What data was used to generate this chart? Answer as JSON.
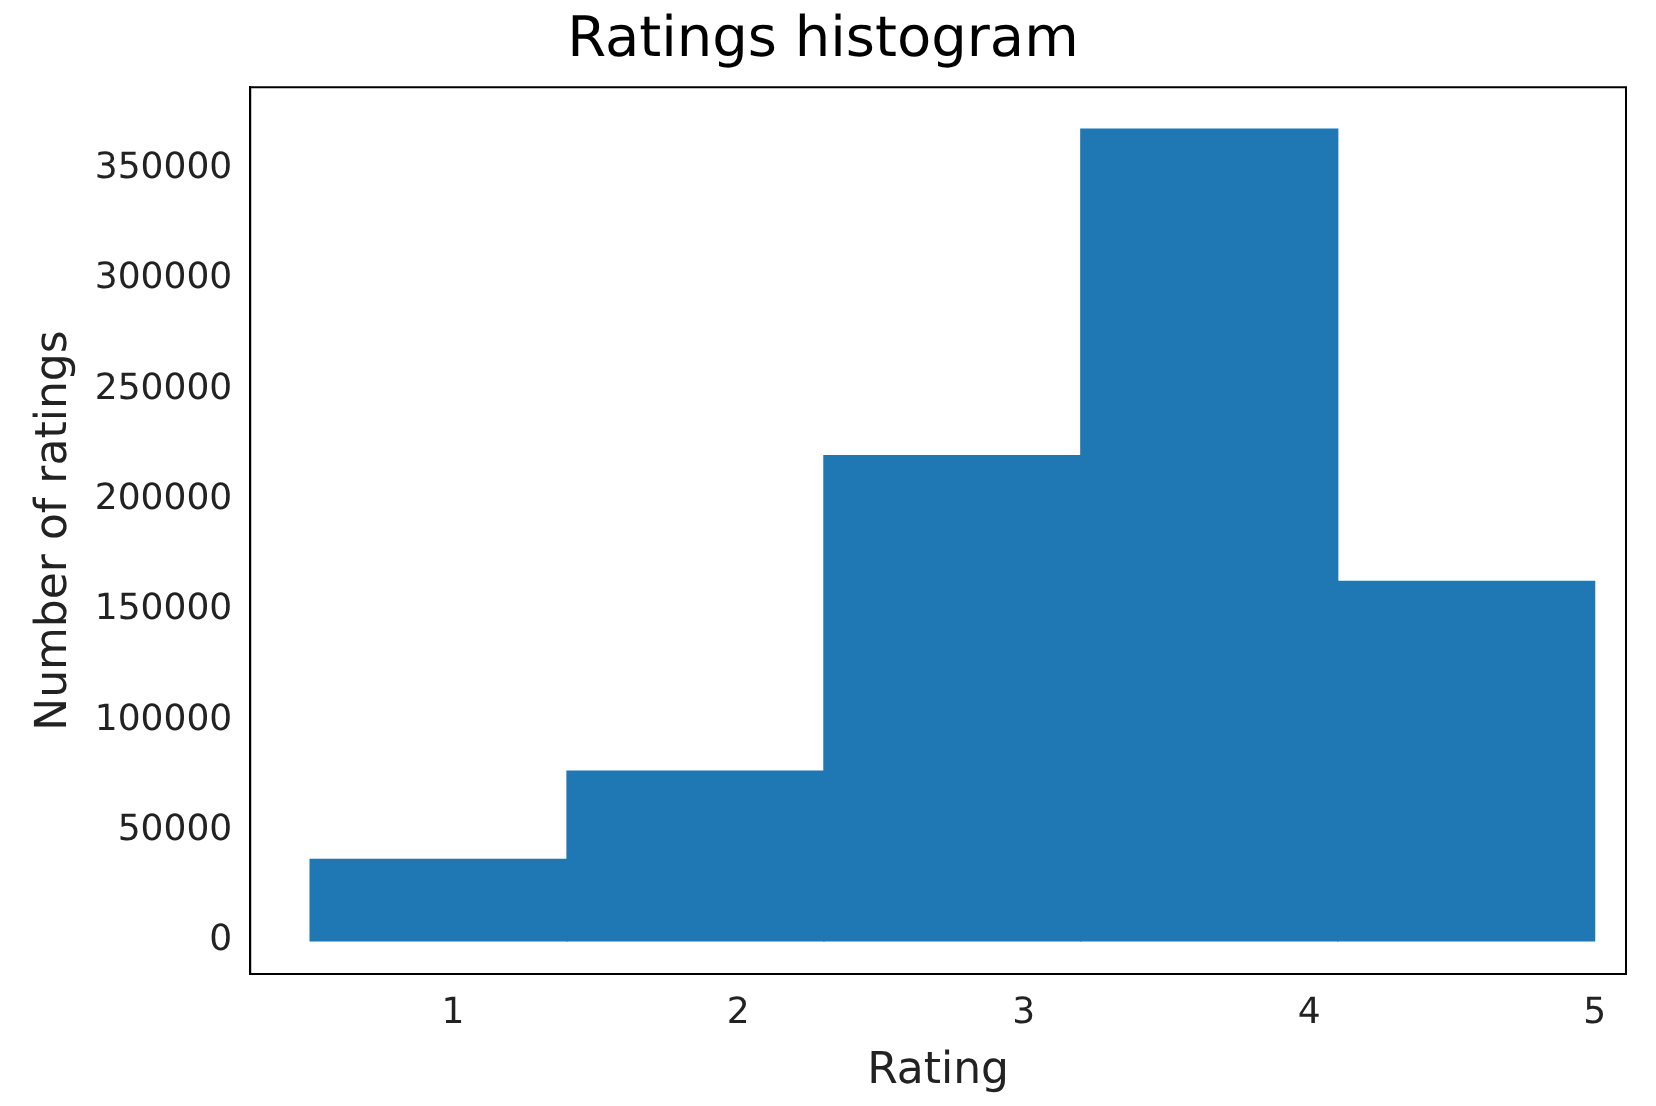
{
  "chart_data": {
    "type": "histogram",
    "title": "Ratings histogram",
    "xlabel": "Rating",
    "ylabel": "Number of ratings",
    "bins": [
      0.5,
      1.4,
      2.3,
      3.2,
      4.1,
      5.0
    ],
    "values": [
      37000,
      77000,
      220000,
      368000,
      163000
    ],
    "color": "#1f77b4",
    "xlim": [
      0.29,
      5.11
    ],
    "xticks": [
      1,
      2,
      3,
      4,
      5
    ],
    "ylim": [
      -15000,
      387000
    ],
    "yticks": [
      0,
      50000,
      100000,
      150000,
      200000,
      250000,
      300000,
      350000
    ],
    "grid": false,
    "legend": false
  }
}
